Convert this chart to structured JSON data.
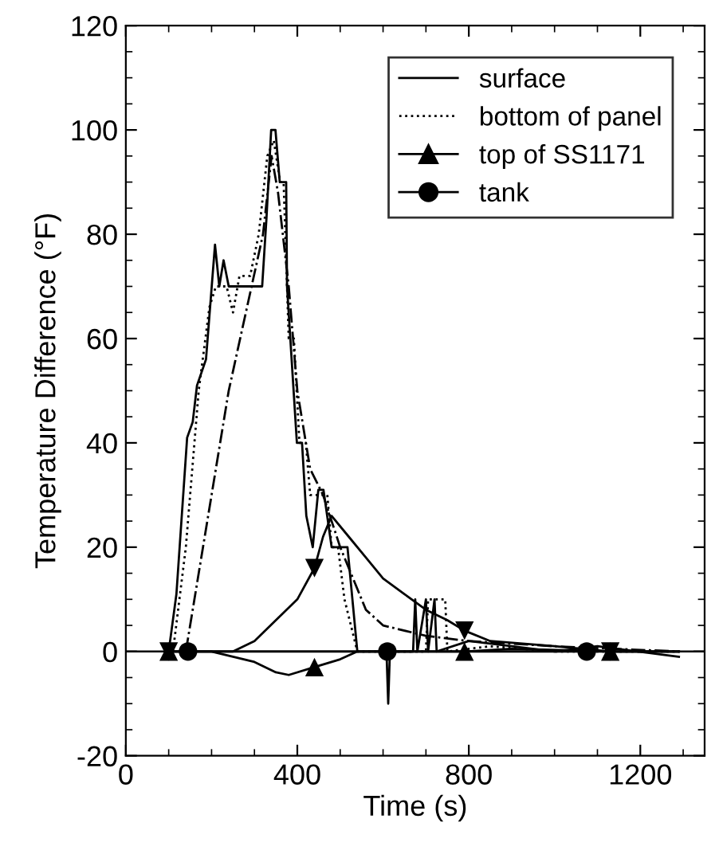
{
  "chart_data": {
    "type": "line",
    "xlabel": "Time (s)",
    "ylabel": "Temperature Difference (°F)",
    "xlim": [
      0,
      1350
    ],
    "ylim": [
      -20,
      120
    ],
    "xticks": [
      0,
      400,
      800,
      1200
    ],
    "yticks": [
      -20,
      0,
      20,
      40,
      60,
      80,
      100,
      120
    ],
    "grid": false,
    "legend": "top right",
    "ref_lines": [
      {
        "axis": "y",
        "value": 0,
        "color": "#000000",
        "line_style": "solid"
      }
    ],
    "series": [
      {
        "name": "surface",
        "color": "#000000",
        "line_style": "solid",
        "x": [
          100,
          118,
          143,
          156,
          166,
          187,
          208,
          218,
          228,
          240,
          318,
          328,
          339,
          349,
          359,
          374,
          376,
          399,
          411,
          421,
          436,
          449,
          461,
          480,
          517,
          540,
          670,
          675,
          680,
          700,
          705,
          720,
          725,
          800,
          900,
          1000,
          1100,
          1290
        ],
        "values": [
          0,
          11,
          41,
          44,
          51,
          56,
          78,
          70,
          75,
          70,
          70,
          83,
          100,
          100,
          90,
          90,
          70,
          40,
          40,
          26,
          20,
          31,
          31,
          20,
          20,
          0,
          0,
          10,
          0,
          10,
          0,
          10,
          0,
          2,
          1,
          0,
          1,
          -1
        ]
      },
      {
        "name": "bottom of panel",
        "color": "#000000",
        "line_style": "dotted",
        "x": [
          110,
          140,
          170,
          195,
          210,
          235,
          250,
          265,
          290,
          310,
          330,
          345,
          360,
          368,
          380,
          392,
          405,
          420,
          430,
          470,
          480,
          495,
          510,
          540,
          700,
          705,
          745,
          750,
          850,
          1000,
          1290
        ],
        "values": [
          0,
          20,
          50,
          66,
          70,
          70,
          65,
          72,
          72,
          80,
          95,
          98,
          90,
          90,
          60,
          60,
          40,
          40,
          30,
          30,
          20,
          20,
          10,
          0,
          0,
          10,
          10,
          0,
          1,
          0,
          0
        ]
      },
      {
        "color": "#000000",
        "line_style": "dashdot",
        "x": [
          140,
          160,
          200,
          240,
          280,
          320,
          340,
          355,
          380,
          400,
          430,
          460,
          500,
          540,
          560,
          600,
          700,
          800,
          1000,
          1290
        ],
        "values": [
          0,
          10,
          30,
          50,
          65,
          80,
          95,
          88,
          70,
          50,
          35,
          30,
          20,
          12,
          8,
          5,
          3,
          2,
          1,
          0
        ]
      },
      {
        "color": "#000000",
        "line_style": "solid",
        "x": [
          100,
          250,
          300,
          350,
          400,
          440,
          460,
          480,
          520,
          560,
          600,
          650,
          700,
          750,
          790,
          850,
          1000,
          1130,
          1290
        ],
        "values": [
          0,
          0,
          2,
          6,
          10,
          16,
          22,
          26,
          22,
          18,
          14,
          11,
          8,
          6,
          4,
          2,
          1,
          0,
          0
        ]
      },
      {
        "type": "scatter",
        "marker": "triangle_down",
        "color": "#000000",
        "x": [
          100,
          440,
          790,
          1130
        ],
        "values": [
          0,
          16,
          4,
          0
        ]
      },
      {
        "color": "#000000",
        "line_style": "solid",
        "x": [
          100,
          200,
          250,
          300,
          350,
          380,
          440,
          500,
          540,
          600,
          700,
          790,
          900,
          1130,
          1290
        ],
        "values": [
          0,
          0,
          -1,
          -2,
          -4,
          -4.5,
          -3,
          -1.5,
          0,
          0,
          0,
          0,
          0.5,
          0,
          0
        ]
      },
      {
        "type": "scatter",
        "name": "top of SS1171",
        "marker": "triangle",
        "color": "#000000",
        "x": [
          100,
          440,
          790,
          1130
        ],
        "values": [
          0,
          -3,
          0,
          0
        ]
      },
      {
        "color": "#000000",
        "line_style": "solid",
        "x": [
          100,
          145,
          600,
          608,
          612,
          616,
          1075,
          1290
        ],
        "values": [
          0,
          0,
          0,
          0,
          -10,
          0,
          0,
          0
        ]
      },
      {
        "type": "scatter",
        "name": "tank",
        "marker": "circle",
        "color": "#000000",
        "x": [
          145,
          610,
          1075
        ],
        "values": [
          0,
          0,
          0
        ]
      }
    ]
  }
}
